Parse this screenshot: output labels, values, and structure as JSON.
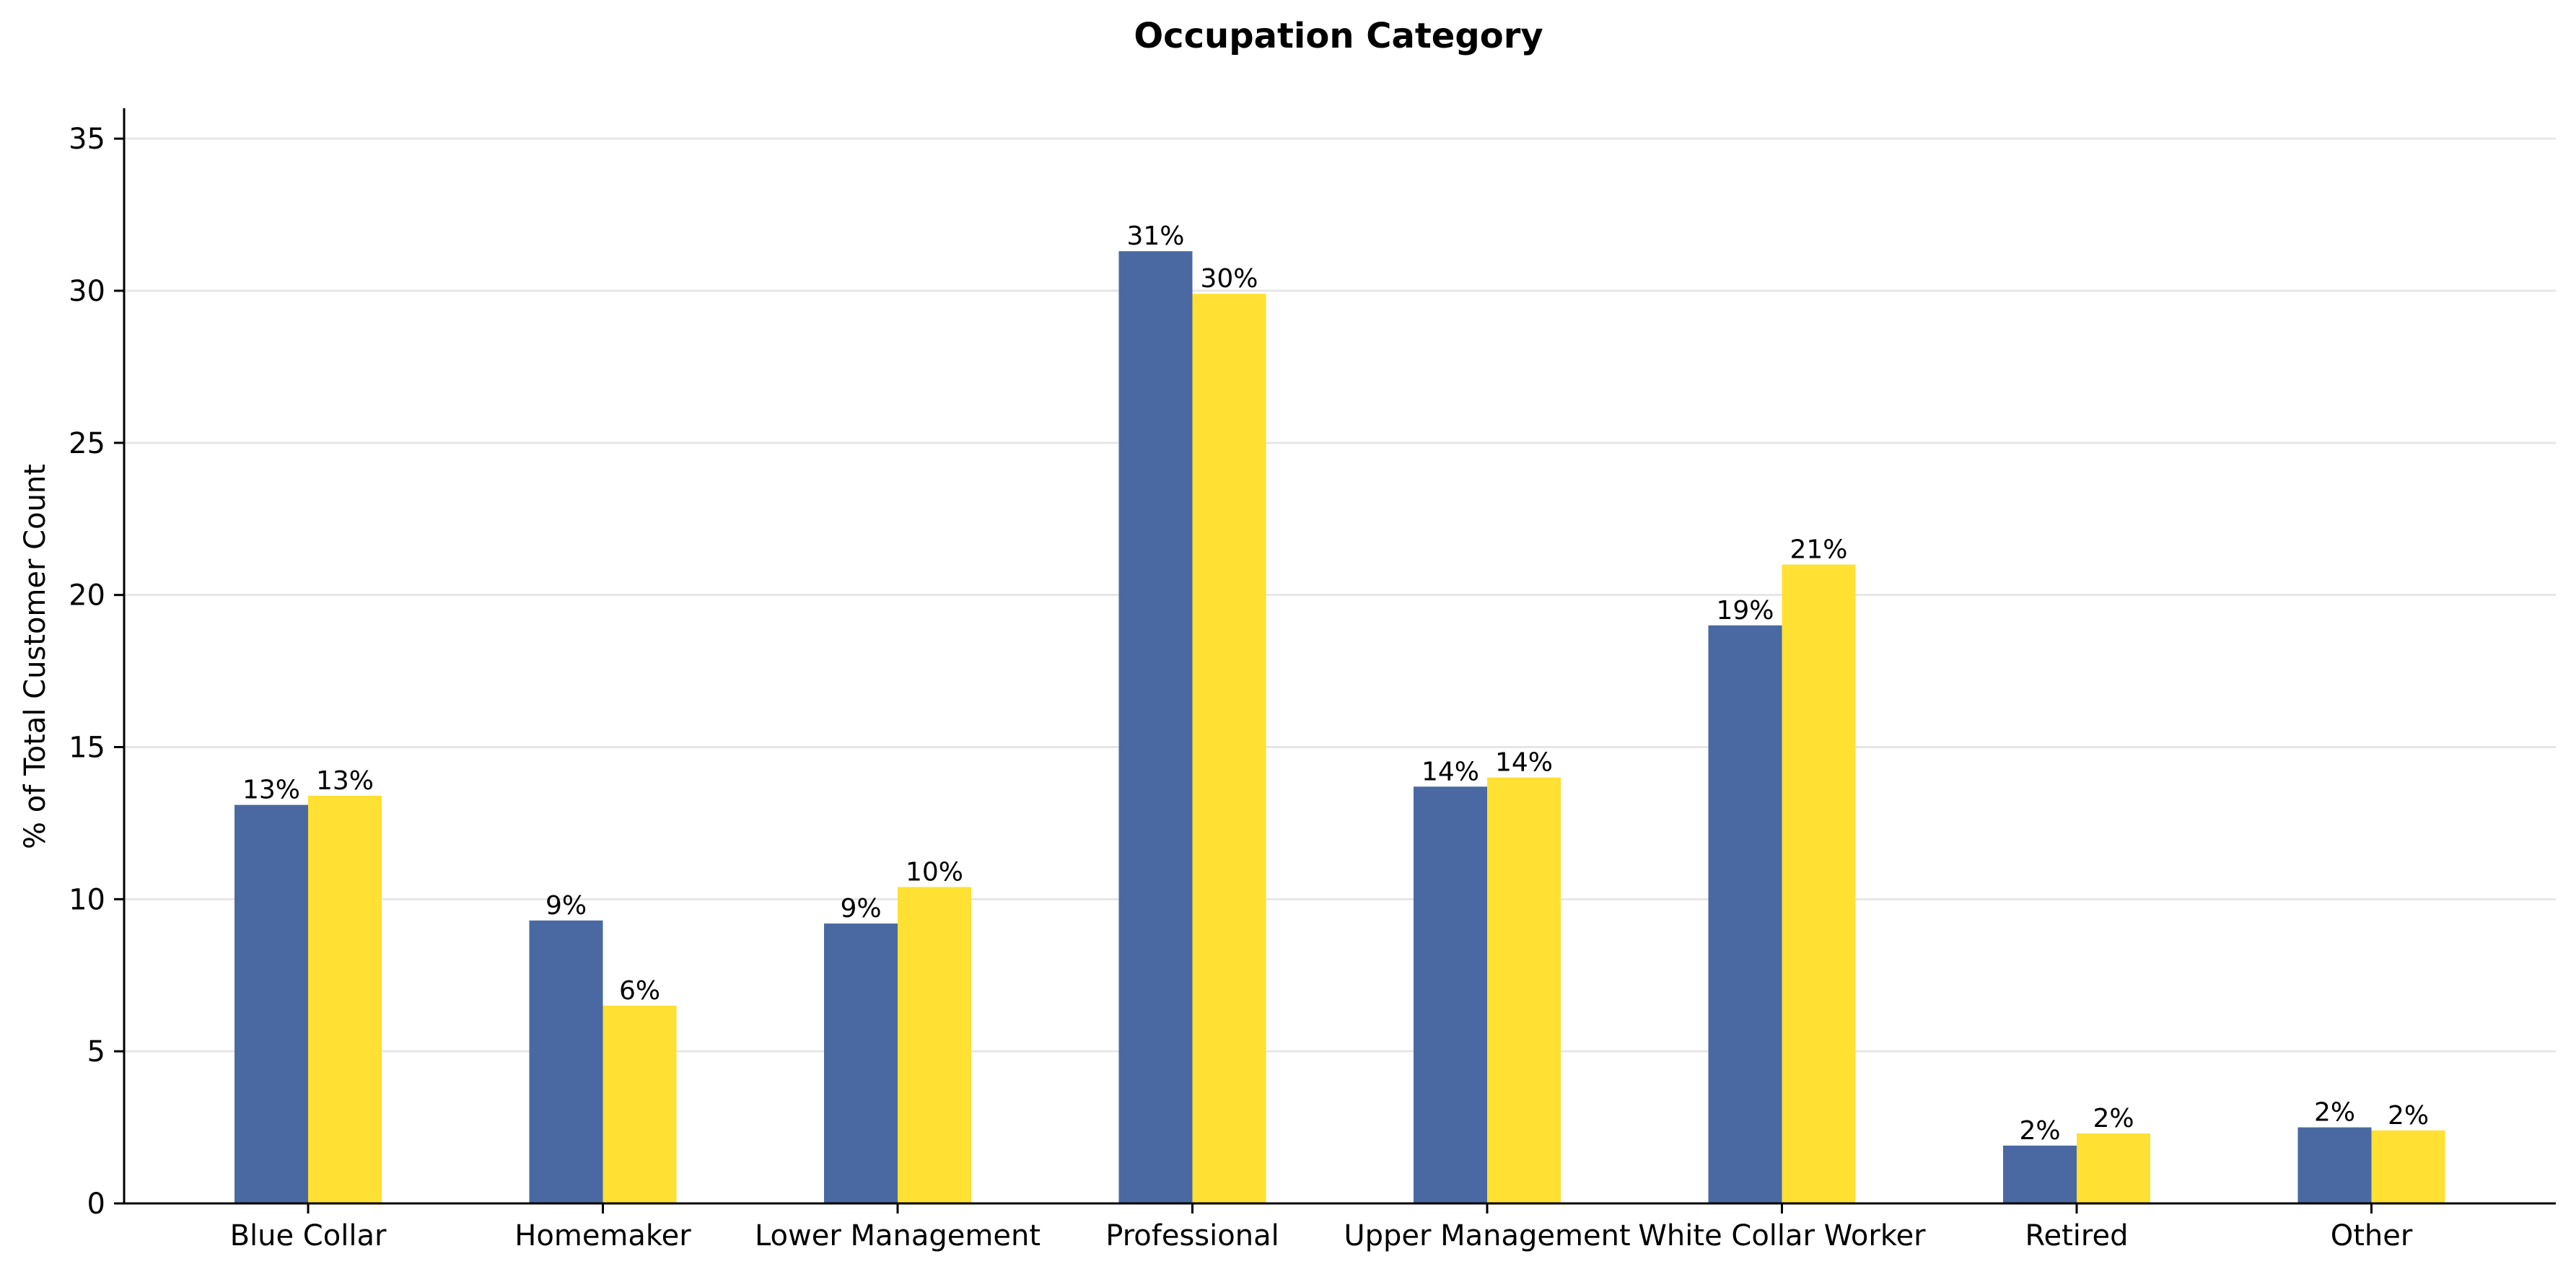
{
  "chart_data": {
    "type": "bar",
    "title": "Occupation Category",
    "xlabel": "",
    "ylabel": "% of Total Customer Count",
    "categories": [
      "Blue Collar",
      "Homemaker",
      "Lower Management",
      "Professional",
      "Upper Management",
      "White Collar Worker",
      "Retired",
      "Other"
    ],
    "series": [
      {
        "color": "#4a69a2",
        "values": [
          13.1,
          9.3,
          9.2,
          31.3,
          13.7,
          19.0,
          1.9,
          2.5
        ],
        "data_labels": [
          "13%",
          "9%",
          "9%",
          "31%",
          "14%",
          "19%",
          "2%",
          "2%"
        ]
      },
      {
        "color": "#ffe033",
        "values": [
          13.4,
          6.5,
          10.4,
          29.9,
          14.0,
          21.0,
          2.3,
          2.4
        ],
        "data_labels": [
          "13%",
          "6%",
          "10%",
          "30%",
          "14%",
          "21%",
          "2%",
          "2%"
        ]
      }
    ],
    "ylim": [
      0,
      36
    ],
    "yticks": [
      0,
      5,
      10,
      15,
      20,
      25,
      30,
      35
    ],
    "ytick_labels": [
      "0",
      "5",
      "10",
      "15",
      "20",
      "25",
      "30",
      "35"
    ],
    "grid": "horizontal",
    "legend": "none"
  }
}
